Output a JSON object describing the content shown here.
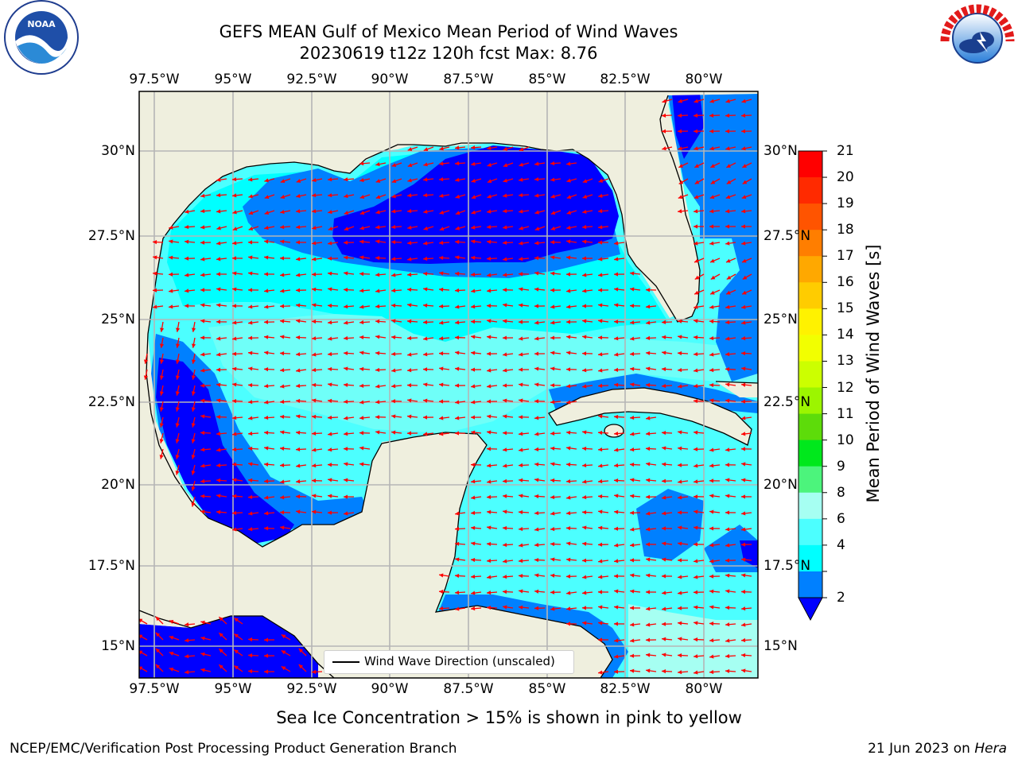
{
  "title": {
    "line1": "GEFS MEAN Gulf of Mexico Mean Period of Wind Waves",
    "line2": "20230619 t12z 120h fcst   Max: 8.76"
  },
  "axes": {
    "lon_labels": [
      "97.5°W",
      "95°W",
      "92.5°W",
      "90°W",
      "87.5°W",
      "85°W",
      "82.5°W",
      "80°W"
    ],
    "lat_labels": [
      "30°N",
      "27.5°N",
      "25°N",
      "22.5°N",
      "20°N",
      "17.5°N",
      "15°N"
    ]
  },
  "map_data": {
    "variable": "Mean Period of Wind Waves",
    "unit": "s",
    "max": 8.76,
    "lon_range": [
      -98.0,
      -78.3
    ],
    "lat_range": [
      14.0,
      31.6
    ],
    "land_color": "#efefde",
    "grid": true,
    "arrows": "red, pointing mostly west (easterly trade winds)"
  },
  "colorbar": {
    "label": "Mean Period of Wind Waves [s]",
    "ticks": [
      "21",
      "20",
      "19",
      "18",
      "17",
      "16",
      "15",
      "14",
      "13",
      "12",
      "11",
      "10",
      "9",
      "8",
      "6",
      "4",
      "2"
    ],
    "colors": [
      "#ff0000",
      "#ff2a00",
      "#ff5400",
      "#ff7e00",
      "#ffa800",
      "#ffcc00",
      "#fff200",
      "#f2ff00",
      "#ccff00",
      "#9cf500",
      "#5ddc0a",
      "#00e81c",
      "#4cf47c",
      "#a6fff2",
      "#4cffff",
      "#00ffff",
      "#0080ff"
    ],
    "underflow_color": "#0000ff"
  },
  "legend": {
    "entry": "Wind Wave Direction (unscaled)"
  },
  "footnote": "Sea Ice Concentration > 15% is shown in pink to yellow",
  "credit": {
    "left": "NCEP/EMC/Verification Post Processing Product Generation Branch",
    "right_prefix": "21 Jun 2023 on ",
    "right_host": "Hera"
  },
  "logos": {
    "left": "NOAA",
    "right": "NATIONAL WEATHER SERVICE"
  },
  "colors": {
    "dark_blue": "#0000ff",
    "mid_blue": "#0080ff",
    "cyan": "#00ffff",
    "light_cyan": "#4cffff",
    "pale_cyan": "#a6fff2",
    "arrow": "#ff0000"
  }
}
